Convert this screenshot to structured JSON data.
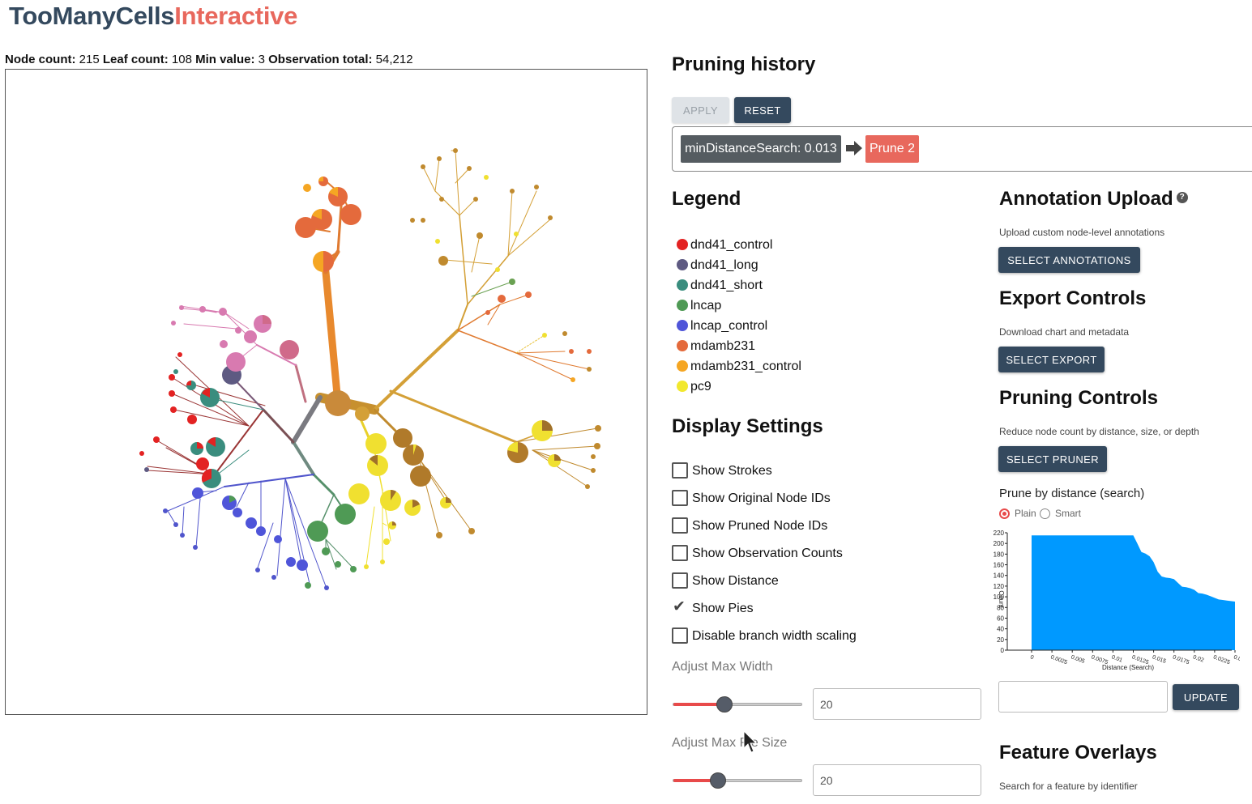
{
  "app": {
    "brand_part1": "TooManyCells",
    "brand_part2": "Interactive"
  },
  "stats": {
    "node_count_label": "Node count:",
    "node_count": "215",
    "leaf_count_label": "Leaf count:",
    "leaf_count": "108",
    "min_value_label": "Min value:",
    "min_value": "3",
    "obs_total_label": "Observation total:",
    "obs_total": "54,212"
  },
  "pruning_history": {
    "title": "Pruning history",
    "apply_label": "APPLY",
    "reset_label": "RESET",
    "steps": [
      "minDistanceSearch: 0.013",
      "Prune 2"
    ]
  },
  "legend": {
    "title": "Legend",
    "items": [
      {
        "label": "dnd41_control",
        "color": "#e32222"
      },
      {
        "label": "dnd41_long",
        "color": "#5e5a82"
      },
      {
        "label": "dnd41_short",
        "color": "#3a8d7e"
      },
      {
        "label": "lncap",
        "color": "#4f9a55"
      },
      {
        "label": "lncap_control",
        "color": "#4f55d9"
      },
      {
        "label": "mdamb231",
        "color": "#e46a3c"
      },
      {
        "label": "mdamb231_control",
        "color": "#f5a623"
      },
      {
        "label": "pc9",
        "color": "#f2e82e"
      }
    ]
  },
  "display_settings": {
    "title": "Display Settings",
    "checkboxes": [
      {
        "label": "Show Strokes",
        "checked": false
      },
      {
        "label": "Show Original Node IDs",
        "checked": false
      },
      {
        "label": "Show Pruned Node IDs",
        "checked": false
      },
      {
        "label": "Show Observation Counts",
        "checked": false
      },
      {
        "label": "Show Distance",
        "checked": false
      },
      {
        "label": "Show Pies",
        "checked": true
      },
      {
        "label": "Disable branch width scaling",
        "checked": false
      }
    ],
    "max_width_label": "Adjust Max Width",
    "max_width_value": "20",
    "max_width_fraction": 0.4,
    "max_pie_label": "Adjust Max Pie Size",
    "max_pie_value": "20",
    "max_pie_fraction": 0.35
  },
  "annotation_upload": {
    "title": "Annotation Upload",
    "help": "?",
    "description": "Upload custom node-level annotations",
    "button": "SELECT ANNOTATIONS"
  },
  "export_controls": {
    "title": "Export Controls",
    "description": "Download chart and metadata",
    "button": "SELECT EXPORT"
  },
  "pruning_controls": {
    "title": "Pruning Controls",
    "description": "Reduce node count by distance, size, or depth",
    "button": "SELECT PRUNER",
    "prune_mode_title": "Prune by distance (search)",
    "radio_plain": "Plain",
    "radio_smart": "Smart",
    "selected": "Plain",
    "update_button": "UPDATE"
  },
  "feature_overlays": {
    "title": "Feature Overlays",
    "description": "Search for a feature by identifier"
  },
  "chart_data": {
    "type": "area",
    "xlabel": "Distance (Search)",
    "ylabel": "Count",
    "x_ticks": [
      "0",
      "0.0025",
      "0.005",
      "0.0075",
      "0.01",
      "0.0125",
      "0.015",
      "0.0175",
      "0.02",
      "0.0225",
      "0.025"
    ],
    "y_ticks": [
      "0",
      "20",
      "40",
      "60",
      "80",
      "100",
      "120",
      "140",
      "160",
      "180",
      "200",
      "220"
    ],
    "xlim": [
      0,
      0.025
    ],
    "ylim": [
      0,
      220
    ],
    "x": [
      0,
      0.0125,
      0.013,
      0.0135,
      0.014,
      0.0145,
      0.015,
      0.0155,
      0.016,
      0.0165,
      0.017,
      0.0175,
      0.018,
      0.0185,
      0.019,
      0.0195,
      0.02,
      0.0205,
      0.021,
      0.0215,
      0.022,
      0.0225,
      0.023,
      0.0235,
      0.024,
      0.0245,
      0.025
    ],
    "y": [
      215,
      215,
      200,
      184,
      181,
      176,
      165,
      147,
      138,
      136,
      135,
      133,
      126,
      119,
      118,
      116,
      113,
      107,
      106,
      104,
      101,
      98,
      95,
      94,
      93,
      92,
      91
    ],
    "color": "#0099ff",
    "grid": false
  }
}
